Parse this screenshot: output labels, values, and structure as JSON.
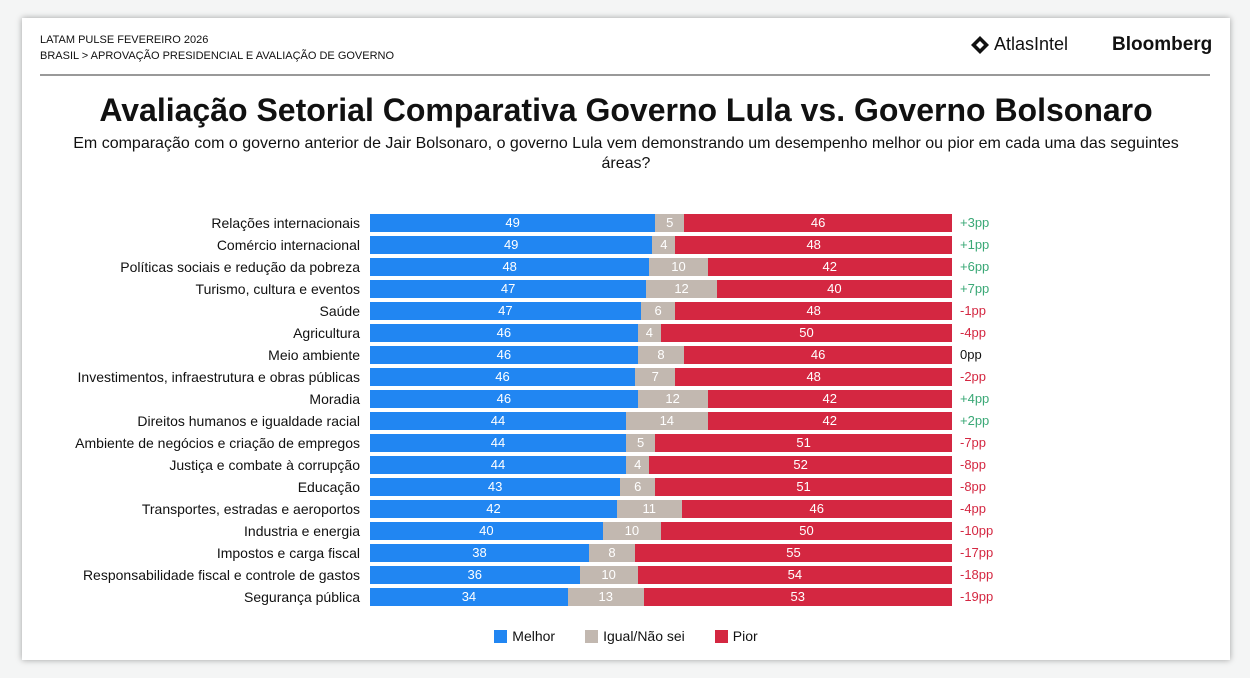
{
  "header": {
    "line1": "LATAM PULSE FEVEREIRO 2026",
    "line2": "BRASIL > APROVAÇÃO PRESIDENCIAL E AVALIAÇÃO DE GOVERNO",
    "logo1": "AtlasIntel",
    "logo2": "Bloomberg"
  },
  "chart_data": {
    "type": "bar",
    "orientation": "horizontal",
    "stacked": true,
    "title": "Avaliação Setorial Comparativa Governo Lula vs. Governo Bolsonaro",
    "subtitle": "Em comparação com o governo anterior de Jair Bolsonaro, o governo Lula vem demonstrando um desempenho melhor ou pior em cada uma das seguintes áreas?",
    "categories": [
      "Relações internacionais",
      "Comércio internacional",
      "Políticas sociais e redução da pobreza",
      "Turismo, cultura e eventos",
      "Saúde",
      "Agricultura",
      "Meio ambiente",
      "Investimentos, infraestrutura e obras públicas",
      "Moradia",
      "Direitos humanos e igualdade racial",
      "Ambiente de negócios e criação de empregos",
      "Justiça e combate à corrupção",
      "Educação",
      "Transportes, estradas e aeroportos",
      "Industria e energia",
      "Impostos e carga fiscal",
      "Responsabilidade fiscal e controle de gastos",
      "Segurança pública"
    ],
    "series": [
      {
        "name": "Melhor",
        "color": "#2186f2",
        "values": [
          49,
          49,
          48,
          47,
          47,
          46,
          46,
          46,
          46,
          44,
          44,
          44,
          43,
          42,
          40,
          38,
          36,
          34
        ]
      },
      {
        "name": "Igual/Não sei",
        "color": "#c2b8b0",
        "values": [
          5,
          4,
          10,
          12,
          6,
          4,
          8,
          7,
          12,
          14,
          5,
          4,
          6,
          11,
          10,
          8,
          10,
          13
        ]
      },
      {
        "name": "Pior",
        "color": "#d42741",
        "values": [
          46,
          48,
          42,
          40,
          48,
          50,
          46,
          48,
          42,
          42,
          51,
          52,
          51,
          46,
          50,
          55,
          54,
          53
        ]
      }
    ],
    "differences": [
      "+3pp",
      "+1pp",
      "+6pp",
      "+7pp",
      "-1pp",
      "-4pp",
      "0pp",
      "-2pp",
      "+4pp",
      "+2pp",
      "-7pp",
      "-8pp",
      "-8pp",
      "-4pp",
      "-10pp",
      "-17pp",
      "-18pp",
      "-19pp"
    ],
    "diff_colors": {
      "positive": "#3aa876",
      "negative": "#d42741",
      "zero": "#111111"
    },
    "legend_position": "bottom"
  }
}
